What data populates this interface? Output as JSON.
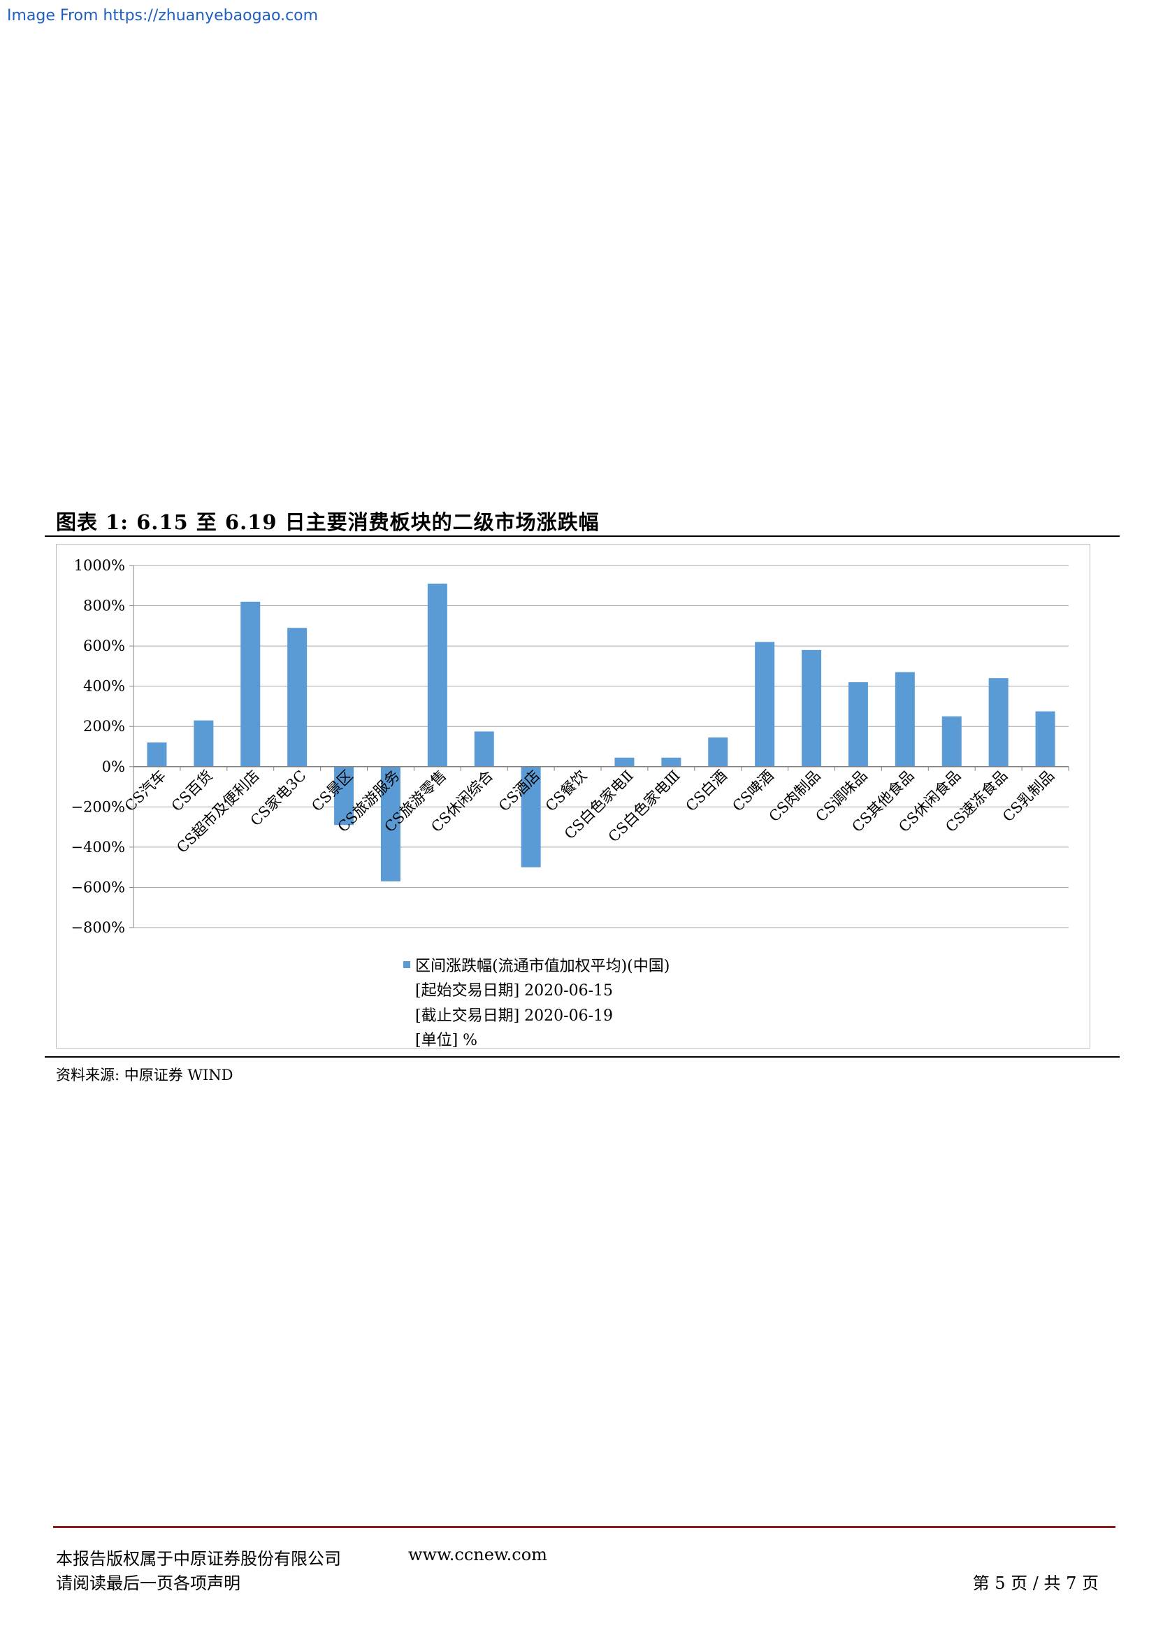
{
  "watermark": "Image From https://zhuanyebaogao.com",
  "figure_title": "图表 1:   6.15 至 6.19 日主要消费板块的二级市场涨跌幅",
  "source": "资料来源: 中原证券 WIND",
  "footer": {
    "copyright": "本报告版权属于中原证券股份有限公司",
    "url": "www.ccnew.com",
    "disclaimer": "请阅读最后一页各项声明",
    "page": "第 5 页 / 共 7 页"
  },
  "colors": {
    "bar": "#5b9bd5",
    "grid": "#a6a6a6",
    "footer_rule": "#8b1a1a"
  },
  "chart_data": {
    "type": "bar",
    "categories": [
      "CS汽车",
      "CS百货",
      "CS超市及便利店",
      "CS家电3C",
      "CS景区",
      "CS旅游服务",
      "CS旅游零售",
      "CS休闲综合",
      "CS酒店",
      "CS餐饮",
      "CS白色家电Ⅱ",
      "CS白色家电Ⅲ",
      "CS白酒",
      "CS啤酒",
      "CS肉制品",
      "CS调味品",
      "CS其他食品",
      "CS休闲食品",
      "CS速冻食品",
      "CS乳制品"
    ],
    "series": [
      {
        "name": "区间涨跌幅(流通市值加权平均)(中国)",
        "values": [
          120,
          230,
          820,
          690,
          -290,
          -570,
          910,
          175,
          -500,
          0,
          45,
          45,
          145,
          620,
          580,
          420,
          470,
          250,
          440,
          275
        ]
      }
    ],
    "yticks": [
      "1000%",
      "800%",
      "600%",
      "400%",
      "200%",
      "0%",
      "−200%",
      "−400%",
      "−600%",
      "−800%"
    ],
    "ylim": [
      -800,
      1000
    ],
    "ytick_step": 200,
    "grid": true,
    "legend_position": "bottom",
    "legend_lines": [
      "[起始交易日期] 2020-06-15",
      "[截止交易日期] 2020-06-19",
      "[单位] %"
    ]
  }
}
